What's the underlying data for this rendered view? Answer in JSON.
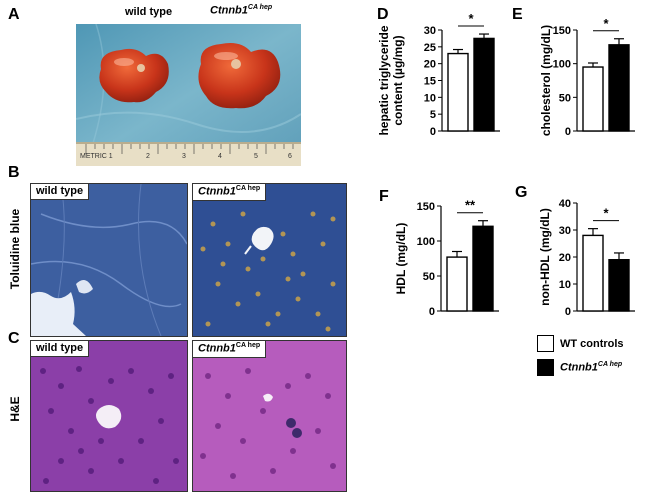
{
  "panels": {
    "A": {
      "letter": "A",
      "label_left": "wild type",
      "label_right": "Ctnnb1",
      "label_right_sup": "CA hep",
      "ruler_text": "METRIC 1",
      "ruler_nums": [
        "2",
        "3",
        "4",
        "5",
        "6"
      ]
    },
    "B": {
      "letter": "B",
      "row_label": "Toluidine blue",
      "left_tag": "wild type",
      "right_tag": "Ctnnb1",
      "right_sup": "CA hep"
    },
    "C": {
      "letter": "C",
      "row_label": "H&E",
      "left_tag": "wild type",
      "right_tag": "Ctnnb1",
      "right_sup": "CA hep"
    }
  },
  "chart_data": [
    {
      "id": "D",
      "type": "bar",
      "ylabel": "hepatic triglyceride content (µg/mg)",
      "ylabel_lines": [
        "hepatic triglyceride",
        "content (µg/mg)"
      ],
      "ylim": [
        0,
        30
      ],
      "yticks": [
        0,
        5,
        10,
        15,
        20,
        25,
        30
      ],
      "series": [
        {
          "name": "WT controls",
          "values": [
            23.0
          ],
          "err": [
            1.2
          ],
          "fill": "#ffffff"
        },
        {
          "name": "Ctnnb1 CA hep",
          "values": [
            27.5
          ],
          "err": [
            1.3
          ],
          "fill": "#000000"
        }
      ],
      "sig": "*"
    },
    {
      "id": "E",
      "type": "bar",
      "ylabel": "cholesterol (mg/dL)",
      "ylabel_lines": [
        "cholesterol (mg/dL)"
      ],
      "ylim": [
        0,
        150
      ],
      "yticks": [
        0,
        50,
        100,
        150
      ],
      "series": [
        {
          "name": "WT controls",
          "values": [
            95
          ],
          "err": [
            6
          ],
          "fill": "#ffffff"
        },
        {
          "name": "Ctnnb1 CA hep",
          "values": [
            128
          ],
          "err": [
            9
          ],
          "fill": "#000000"
        }
      ],
      "sig": "*"
    },
    {
      "id": "F",
      "type": "bar",
      "ylabel": "HDL (mg/dL)",
      "ylabel_lines": [
        "HDL (mg/dL)"
      ],
      "ylim": [
        0,
        150
      ],
      "yticks": [
        0,
        50,
        100,
        150
      ],
      "series": [
        {
          "name": "WT controls",
          "values": [
            77
          ],
          "err": [
            8
          ],
          "fill": "#ffffff"
        },
        {
          "name": "Ctnnb1 CA hep",
          "values": [
            121
          ],
          "err": [
            8
          ],
          "fill": "#000000"
        }
      ],
      "sig": "**"
    },
    {
      "id": "G",
      "type": "bar",
      "ylabel": "non-HDL (mg/dL)",
      "ylabel_lines": [
        "non-HDL (mg/dL)"
      ],
      "ylim": [
        0,
        40
      ],
      "yticks": [
        0,
        10,
        20,
        30,
        40
      ],
      "series": [
        {
          "name": "WT controls",
          "values": [
            28
          ],
          "err": [
            2.5
          ],
          "fill": "#ffffff"
        },
        {
          "name": "Ctnnb1 CA hep",
          "values": [
            19
          ],
          "err": [
            2.5
          ],
          "fill": "#000000"
        }
      ],
      "sig": "*"
    }
  ],
  "legend": [
    {
      "label": "WT controls",
      "sup": "",
      "fill": "#ffffff"
    },
    {
      "label": "Ctnnb1",
      "sup": "CA hep",
      "fill": "#000000"
    }
  ]
}
